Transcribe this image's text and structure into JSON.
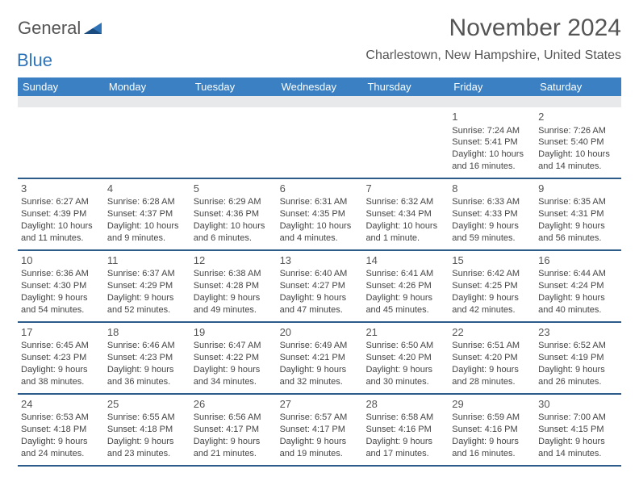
{
  "logo": {
    "word1": "General",
    "word2": "Blue"
  },
  "title": "November 2024",
  "location": "Charlestown, New Hampshire, United States",
  "colors": {
    "header_bg": "#3a80c3",
    "accent": "#2e5c8a"
  },
  "day_headers": [
    "Sunday",
    "Monday",
    "Tuesday",
    "Wednesday",
    "Thursday",
    "Friday",
    "Saturday"
  ],
  "weeks": [
    [
      null,
      null,
      null,
      null,
      null,
      {
        "n": "1",
        "sr": "Sunrise: 7:24 AM",
        "ss": "Sunset: 5:41 PM",
        "dl1": "Daylight: 10 hours",
        "dl2": "and 16 minutes."
      },
      {
        "n": "2",
        "sr": "Sunrise: 7:26 AM",
        "ss": "Sunset: 5:40 PM",
        "dl1": "Daylight: 10 hours",
        "dl2": "and 14 minutes."
      }
    ],
    [
      {
        "n": "3",
        "sr": "Sunrise: 6:27 AM",
        "ss": "Sunset: 4:39 PM",
        "dl1": "Daylight: 10 hours",
        "dl2": "and 11 minutes."
      },
      {
        "n": "4",
        "sr": "Sunrise: 6:28 AM",
        "ss": "Sunset: 4:37 PM",
        "dl1": "Daylight: 10 hours",
        "dl2": "and 9 minutes."
      },
      {
        "n": "5",
        "sr": "Sunrise: 6:29 AM",
        "ss": "Sunset: 4:36 PM",
        "dl1": "Daylight: 10 hours",
        "dl2": "and 6 minutes."
      },
      {
        "n": "6",
        "sr": "Sunrise: 6:31 AM",
        "ss": "Sunset: 4:35 PM",
        "dl1": "Daylight: 10 hours",
        "dl2": "and 4 minutes."
      },
      {
        "n": "7",
        "sr": "Sunrise: 6:32 AM",
        "ss": "Sunset: 4:34 PM",
        "dl1": "Daylight: 10 hours",
        "dl2": "and 1 minute."
      },
      {
        "n": "8",
        "sr": "Sunrise: 6:33 AM",
        "ss": "Sunset: 4:33 PM",
        "dl1": "Daylight: 9 hours",
        "dl2": "and 59 minutes."
      },
      {
        "n": "9",
        "sr": "Sunrise: 6:35 AM",
        "ss": "Sunset: 4:31 PM",
        "dl1": "Daylight: 9 hours",
        "dl2": "and 56 minutes."
      }
    ],
    [
      {
        "n": "10",
        "sr": "Sunrise: 6:36 AM",
        "ss": "Sunset: 4:30 PM",
        "dl1": "Daylight: 9 hours",
        "dl2": "and 54 minutes."
      },
      {
        "n": "11",
        "sr": "Sunrise: 6:37 AM",
        "ss": "Sunset: 4:29 PM",
        "dl1": "Daylight: 9 hours",
        "dl2": "and 52 minutes."
      },
      {
        "n": "12",
        "sr": "Sunrise: 6:38 AM",
        "ss": "Sunset: 4:28 PM",
        "dl1": "Daylight: 9 hours",
        "dl2": "and 49 minutes."
      },
      {
        "n": "13",
        "sr": "Sunrise: 6:40 AM",
        "ss": "Sunset: 4:27 PM",
        "dl1": "Daylight: 9 hours",
        "dl2": "and 47 minutes."
      },
      {
        "n": "14",
        "sr": "Sunrise: 6:41 AM",
        "ss": "Sunset: 4:26 PM",
        "dl1": "Daylight: 9 hours",
        "dl2": "and 45 minutes."
      },
      {
        "n": "15",
        "sr": "Sunrise: 6:42 AM",
        "ss": "Sunset: 4:25 PM",
        "dl1": "Daylight: 9 hours",
        "dl2": "and 42 minutes."
      },
      {
        "n": "16",
        "sr": "Sunrise: 6:44 AM",
        "ss": "Sunset: 4:24 PM",
        "dl1": "Daylight: 9 hours",
        "dl2": "and 40 minutes."
      }
    ],
    [
      {
        "n": "17",
        "sr": "Sunrise: 6:45 AM",
        "ss": "Sunset: 4:23 PM",
        "dl1": "Daylight: 9 hours",
        "dl2": "and 38 minutes."
      },
      {
        "n": "18",
        "sr": "Sunrise: 6:46 AM",
        "ss": "Sunset: 4:23 PM",
        "dl1": "Daylight: 9 hours",
        "dl2": "and 36 minutes."
      },
      {
        "n": "19",
        "sr": "Sunrise: 6:47 AM",
        "ss": "Sunset: 4:22 PM",
        "dl1": "Daylight: 9 hours",
        "dl2": "and 34 minutes."
      },
      {
        "n": "20",
        "sr": "Sunrise: 6:49 AM",
        "ss": "Sunset: 4:21 PM",
        "dl1": "Daylight: 9 hours",
        "dl2": "and 32 minutes."
      },
      {
        "n": "21",
        "sr": "Sunrise: 6:50 AM",
        "ss": "Sunset: 4:20 PM",
        "dl1": "Daylight: 9 hours",
        "dl2": "and 30 minutes."
      },
      {
        "n": "22",
        "sr": "Sunrise: 6:51 AM",
        "ss": "Sunset: 4:20 PM",
        "dl1": "Daylight: 9 hours",
        "dl2": "and 28 minutes."
      },
      {
        "n": "23",
        "sr": "Sunrise: 6:52 AM",
        "ss": "Sunset: 4:19 PM",
        "dl1": "Daylight: 9 hours",
        "dl2": "and 26 minutes."
      }
    ],
    [
      {
        "n": "24",
        "sr": "Sunrise: 6:53 AM",
        "ss": "Sunset: 4:18 PM",
        "dl1": "Daylight: 9 hours",
        "dl2": "and 24 minutes."
      },
      {
        "n": "25",
        "sr": "Sunrise: 6:55 AM",
        "ss": "Sunset: 4:18 PM",
        "dl1": "Daylight: 9 hours",
        "dl2": "and 23 minutes."
      },
      {
        "n": "26",
        "sr": "Sunrise: 6:56 AM",
        "ss": "Sunset: 4:17 PM",
        "dl1": "Daylight: 9 hours",
        "dl2": "and 21 minutes."
      },
      {
        "n": "27",
        "sr": "Sunrise: 6:57 AM",
        "ss": "Sunset: 4:17 PM",
        "dl1": "Daylight: 9 hours",
        "dl2": "and 19 minutes."
      },
      {
        "n": "28",
        "sr": "Sunrise: 6:58 AM",
        "ss": "Sunset: 4:16 PM",
        "dl1": "Daylight: 9 hours",
        "dl2": "and 17 minutes."
      },
      {
        "n": "29",
        "sr": "Sunrise: 6:59 AM",
        "ss": "Sunset: 4:16 PM",
        "dl1": "Daylight: 9 hours",
        "dl2": "and 16 minutes."
      },
      {
        "n": "30",
        "sr": "Sunrise: 7:00 AM",
        "ss": "Sunset: 4:15 PM",
        "dl1": "Daylight: 9 hours",
        "dl2": "and 14 minutes."
      }
    ]
  ]
}
